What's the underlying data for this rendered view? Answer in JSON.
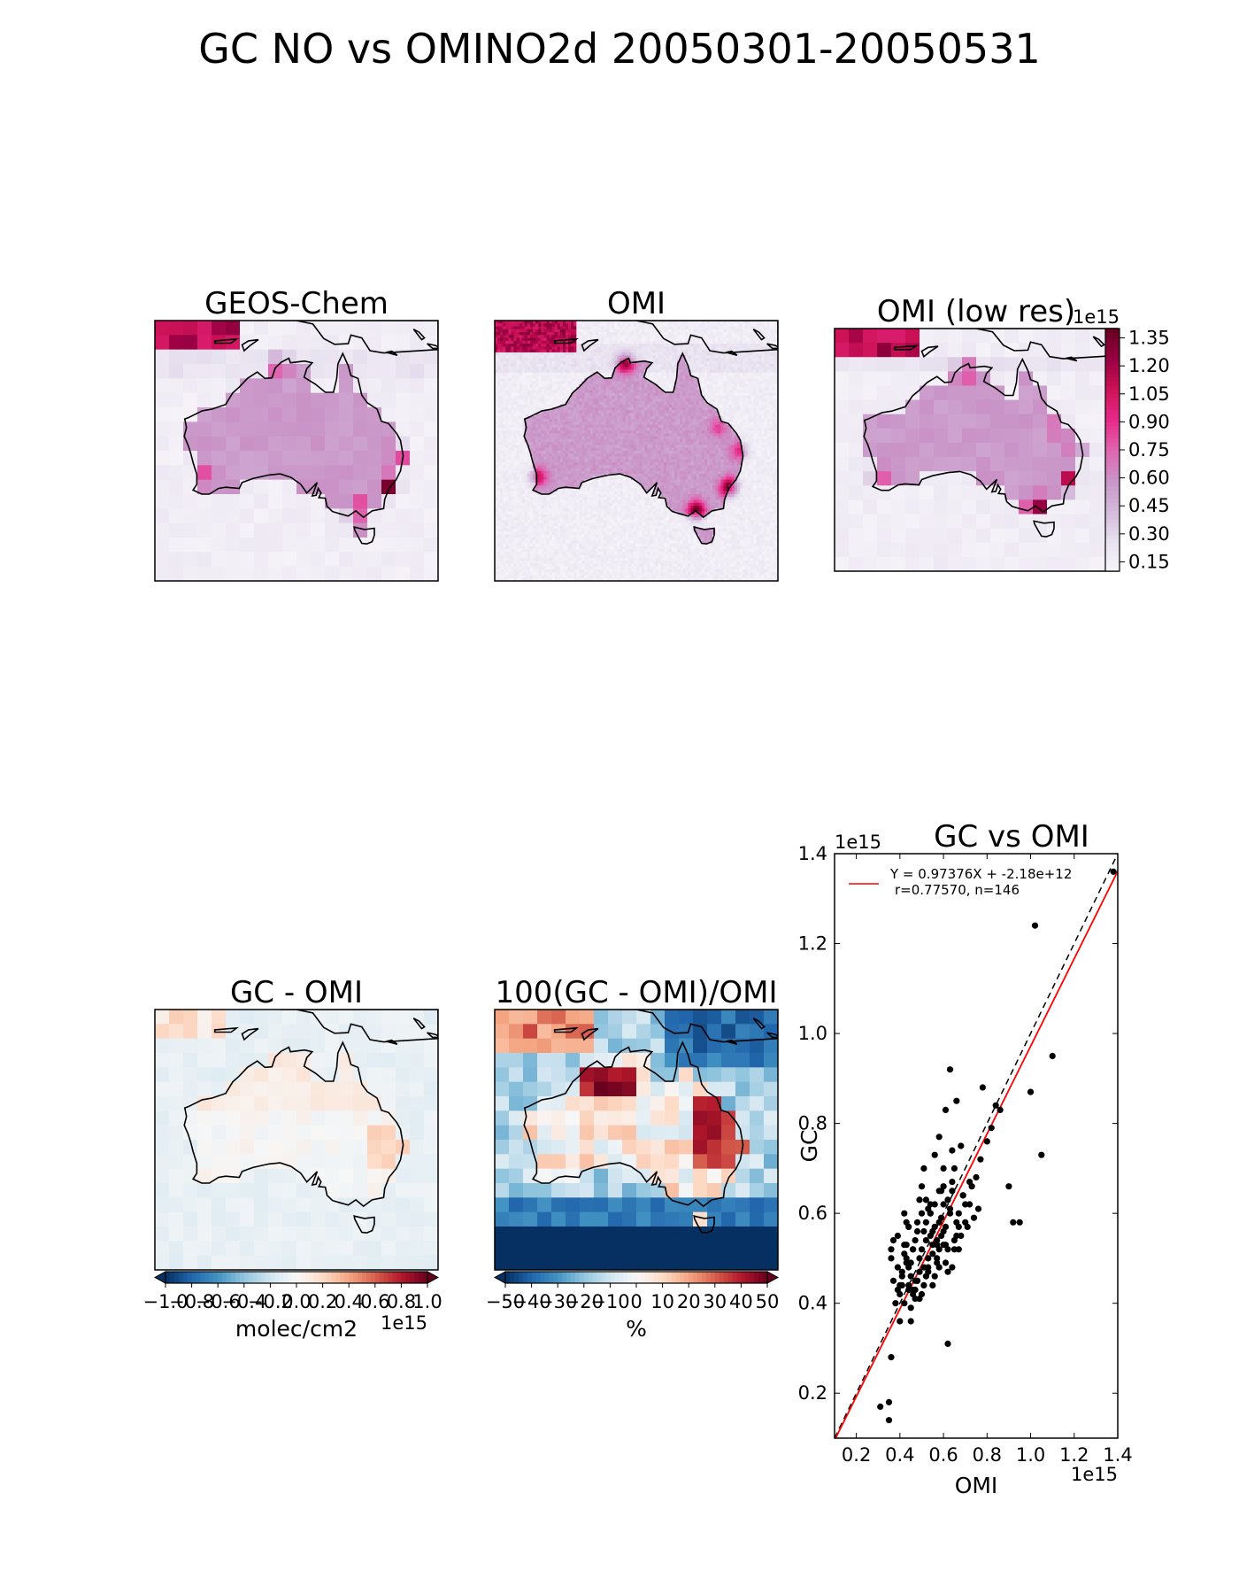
{
  "figure": {
    "title": "GC NO vs OMINO2d 20050301-20050531"
  },
  "colors": {
    "map_seq": [
      "#f7f4f9",
      "#e7e1ef",
      "#d4b9da",
      "#c994c7",
      "#df65b0",
      "#e7298a",
      "#ce1256",
      "#980043",
      "#67001f"
    ],
    "map_div": [
      "#053061",
      "#2166ac",
      "#4393c3",
      "#92c5de",
      "#d1e5f0",
      "#f7f7f7",
      "#fddbc7",
      "#f4a582",
      "#d6604d",
      "#b2182b",
      "#67001f"
    ],
    "fit_line": "#ff0000",
    "points": "#000000"
  },
  "chart_data": [
    {
      "type": "heatmap",
      "title": "GEOS-Chem",
      "seed": 11,
      "hotspots": [
        {
          "lon": 151.0,
          "lat": -33.5,
          "value": 1.3
        },
        {
          "lon": 145.0,
          "lat": -38.0,
          "value": 1.35
        },
        {
          "lon": 131.0,
          "lat": -12.5,
          "value": 0.95
        },
        {
          "lon": 117.0,
          "lat": -32.0,
          "value": 0.8
        },
        {
          "lon": 153.0,
          "lat": -28.0,
          "value": 0.9
        }
      ]
    },
    {
      "type": "heatmap",
      "title": "OMI",
      "seed": 23,
      "hotspots": [
        {
          "lon": 151.0,
          "lat": -33.8,
          "value": 1.3
        },
        {
          "lon": 145.0,
          "lat": -37.8,
          "value": 1.35
        },
        {
          "lon": 132.0,
          "lat": -12.5,
          "value": 1.2
        },
        {
          "lon": 116.0,
          "lat": -32.0,
          "value": 1.0
        },
        {
          "lon": 153.0,
          "lat": -27.5,
          "value": 0.9
        },
        {
          "lon": 149.0,
          "lat": -23.5,
          "value": 0.8
        }
      ]
    },
    {
      "type": "heatmap",
      "title": "OMI (low res)",
      "seed": 37,
      "colorbar": {
        "ticks": [
          0.15,
          0.3,
          0.45,
          0.6,
          0.75,
          0.9,
          1.05,
          1.2,
          1.35
        ],
        "tick_labels": [
          "0.15",
          "0.30",
          "0.45",
          "0.60",
          "0.75",
          "0.90",
          "1.05",
          "1.20",
          "1.35"
        ],
        "range": [
          0.1,
          1.4
        ],
        "exponent": "1e15"
      }
    },
    {
      "type": "heatmap",
      "title": "GC - OMI",
      "seed": 41,
      "colorbar": {
        "ticks": [
          -1.0,
          -0.8,
          -0.6,
          -0.4,
          -0.2,
          0.0,
          0.2,
          0.4,
          0.6,
          0.8,
          1.0
        ],
        "tick_labels": [
          "−1.0",
          "−0.8",
          "−0.6",
          "−0.4",
          "−0.2",
          "0.0",
          "0.2",
          "0.4",
          "0.6",
          "0.8",
          "1.0"
        ],
        "range": [
          -1.0,
          1.0
        ],
        "label": "molec/cm2",
        "exponent": "1e15"
      }
    },
    {
      "type": "heatmap",
      "title": "100(GC - OMI)/OMI",
      "seed": 53,
      "colorbar": {
        "ticks": [
          -50,
          -40,
          -30,
          -20,
          -10,
          0,
          10,
          20,
          30,
          40,
          50
        ],
        "tick_labels": [
          "−50",
          "−40",
          "−30",
          "−20",
          "−10",
          "0",
          "10",
          "20",
          "30",
          "40",
          "50"
        ],
        "range": [
          -50,
          50
        ],
        "label": "%"
      }
    },
    {
      "type": "scatter",
      "title": "GC vs OMI",
      "xlabel": "OMI",
      "ylabel": "GC",
      "xlim": [
        0.1,
        1.4
      ],
      "ylim": [
        0.1,
        1.4
      ],
      "x_exponent": "1e15",
      "y_exponent": "1e15",
      "xticks": [
        0.2,
        0.4,
        0.6,
        0.8,
        1.0,
        1.2,
        1.4
      ],
      "xtick_labels": [
        "0.2",
        "0.4",
        "0.6",
        "0.8",
        "1.0",
        "1.2",
        "1.4"
      ],
      "yticks": [
        0.2,
        0.4,
        0.6,
        0.8,
        1.0,
        1.2,
        1.4
      ],
      "ytick_labels": [
        "0.2",
        "0.4",
        "0.6",
        "0.8",
        "1.0",
        "1.2",
        "1.4"
      ],
      "legend": {
        "line1": "Y = 0.97376X + -2.18e+12",
        "line2": "r=0.77570, n=146",
        "placement": "top-left"
      },
      "fit": {
        "slope": 0.97376,
        "intercept": -0.00218
      },
      "one_to_one": true,
      "points": {
        "x": [
          0.31,
          0.35,
          0.35,
          0.36,
          0.36,
          0.39,
          0.41,
          0.4,
          0.42,
          0.44,
          0.43,
          0.45,
          0.42,
          0.47,
          0.46,
          0.48,
          0.49,
          0.44,
          0.5,
          0.51,
          0.53,
          0.52,
          0.54,
          0.55,
          0.56,
          0.57,
          0.58,
          0.6,
          0.61,
          0.62,
          0.63,
          0.64,
          0.65,
          0.66,
          0.67,
          0.68,
          0.7,
          0.72,
          0.75,
          0.78,
          0.8,
          0.84,
          0.86,
          0.9,
          0.92,
          0.95,
          1.0,
          1.02,
          1.05,
          1.1,
          1.38,
          0.36,
          0.37,
          0.38,
          0.37,
          0.39,
          0.4,
          0.41,
          0.42,
          0.43,
          0.45,
          0.46,
          0.47,
          0.48,
          0.49,
          0.5,
          0.51,
          0.52,
          0.53,
          0.54,
          0.55,
          0.56,
          0.57,
          0.58,
          0.59,
          0.6,
          0.61,
          0.62,
          0.63,
          0.64,
          0.65,
          0.66,
          0.67,
          0.68,
          0.69,
          0.7,
          0.71,
          0.73,
          0.74,
          0.76,
          0.62,
          0.45,
          0.47,
          0.49,
          0.51,
          0.53,
          0.55,
          0.57,
          0.59,
          0.61,
          0.52,
          0.54,
          0.56,
          0.58,
          0.6,
          0.48,
          0.5,
          0.46,
          0.44,
          0.43,
          0.41,
          0.4,
          0.39,
          0.42,
          0.44,
          0.46,
          0.48,
          0.5,
          0.52,
          0.54,
          0.56,
          0.58,
          0.6,
          0.62,
          0.64,
          0.66,
          0.55,
          0.57,
          0.53,
          0.51,
          0.49,
          0.47,
          0.45,
          0.43,
          0.59,
          0.61,
          0.63,
          0.65,
          0.67,
          0.69,
          0.72,
          0.77,
          0.82,
          0.6,
          0.64,
          0.58
        ],
        "y": [
          0.17,
          0.14,
          0.18,
          0.28,
          0.52,
          0.55,
          0.47,
          0.36,
          0.6,
          0.43,
          0.53,
          0.36,
          0.4,
          0.45,
          0.52,
          0.58,
          0.5,
          0.44,
          0.66,
          0.7,
          0.48,
          0.63,
          0.6,
          0.56,
          0.73,
          0.49,
          0.65,
          0.62,
          0.83,
          0.31,
          0.92,
          0.67,
          0.7,
          0.85,
          0.57,
          0.75,
          0.58,
          0.62,
          0.68,
          0.88,
          0.76,
          0.84,
          0.83,
          0.66,
          0.58,
          0.58,
          0.87,
          1.24,
          0.73,
          0.95,
          1.36,
          0.5,
          0.54,
          0.4,
          0.45,
          0.48,
          0.42,
          0.44,
          0.51,
          0.49,
          0.46,
          0.42,
          0.41,
          0.45,
          0.47,
          0.52,
          0.48,
          0.46,
          0.5,
          0.55,
          0.53,
          0.57,
          0.54,
          0.52,
          0.59,
          0.56,
          0.53,
          0.63,
          0.61,
          0.65,
          0.52,
          0.58,
          0.6,
          0.55,
          0.64,
          0.62,
          0.57,
          0.66,
          0.59,
          0.61,
          0.47,
          0.39,
          0.43,
          0.41,
          0.44,
          0.47,
          0.51,
          0.53,
          0.55,
          0.49,
          0.58,
          0.62,
          0.46,
          0.48,
          0.53,
          0.56,
          0.6,
          0.43,
          0.48,
          0.5,
          0.46,
          0.44,
          0.43,
          0.53,
          0.57,
          0.52,
          0.45,
          0.42,
          0.54,
          0.6,
          0.62,
          0.58,
          0.66,
          0.52,
          0.48,
          0.55,
          0.44,
          0.5,
          0.61,
          0.56,
          0.63,
          0.54,
          0.49,
          0.58,
          0.65,
          0.57,
          0.6,
          0.54,
          0.52,
          0.64,
          0.67,
          0.72,
          0.79,
          0.7,
          0.74,
          0.77
        ]
      }
    }
  ]
}
